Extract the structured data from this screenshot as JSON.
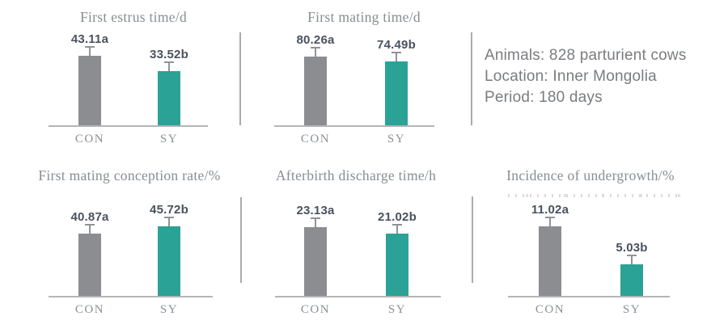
{
  "info_panel": {
    "lines": [
      "Animals: 828 parturient cows",
      "Location: Inner Mongolia",
      "Period: 180 days"
    ]
  },
  "colors": {
    "con_bar": "#8b8d90",
    "sy_bar": "#2aa296",
    "value_text": "#49525e",
    "title_text": "#878d95",
    "divider": "#a9abae",
    "error_bar": "#8f9499"
  },
  "chart_data": [
    {
      "type": "bar",
      "title": "First estrus time/d",
      "categories": [
        "CON",
        "SY"
      ],
      "values": [
        43.11,
        33.52
      ],
      "annotations": [
        "43.11a",
        "33.52b"
      ],
      "ylim": [
        0,
        45
      ],
      "error_bars": true,
      "legend": "none",
      "grid": false
    },
    {
      "type": "bar",
      "title": "First mating time/d",
      "categories": [
        "CON",
        "SY"
      ],
      "values": [
        80.26,
        74.49
      ],
      "annotations": [
        "80.26a",
        "74.49b"
      ],
      "ylim": [
        0,
        85
      ],
      "error_bars": true,
      "legend": "none",
      "grid": false
    },
    {
      "type": "bar",
      "title": "First mating conception rate/%",
      "categories": [
        "CON",
        "SY"
      ],
      "values": [
        40.87,
        45.72
      ],
      "annotations": [
        "40.87a",
        "45.72b"
      ],
      "ylim": [
        0,
        48
      ],
      "error_bars": true,
      "legend": "none",
      "grid": false
    },
    {
      "type": "bar",
      "title": "Afterbirth discharge time/h",
      "categories": [
        "CON",
        "SY"
      ],
      "values": [
        23.13,
        21.02
      ],
      "annotations": [
        "23.13a",
        "21.02b"
      ],
      "ylim": [
        0,
        24.5
      ],
      "error_bars": true,
      "legend": "none",
      "grid": false
    },
    {
      "type": "bar",
      "title": "Incidence of undergrowth/%",
      "categories": [
        "CON",
        "SY"
      ],
      "values": [
        11.02,
        5.03
      ],
      "annotations": [
        "11.02a",
        "5.03b"
      ],
      "ylim": [
        0,
        11.5
      ],
      "error_bars": true,
      "legend": "none",
      "grid": false
    }
  ]
}
